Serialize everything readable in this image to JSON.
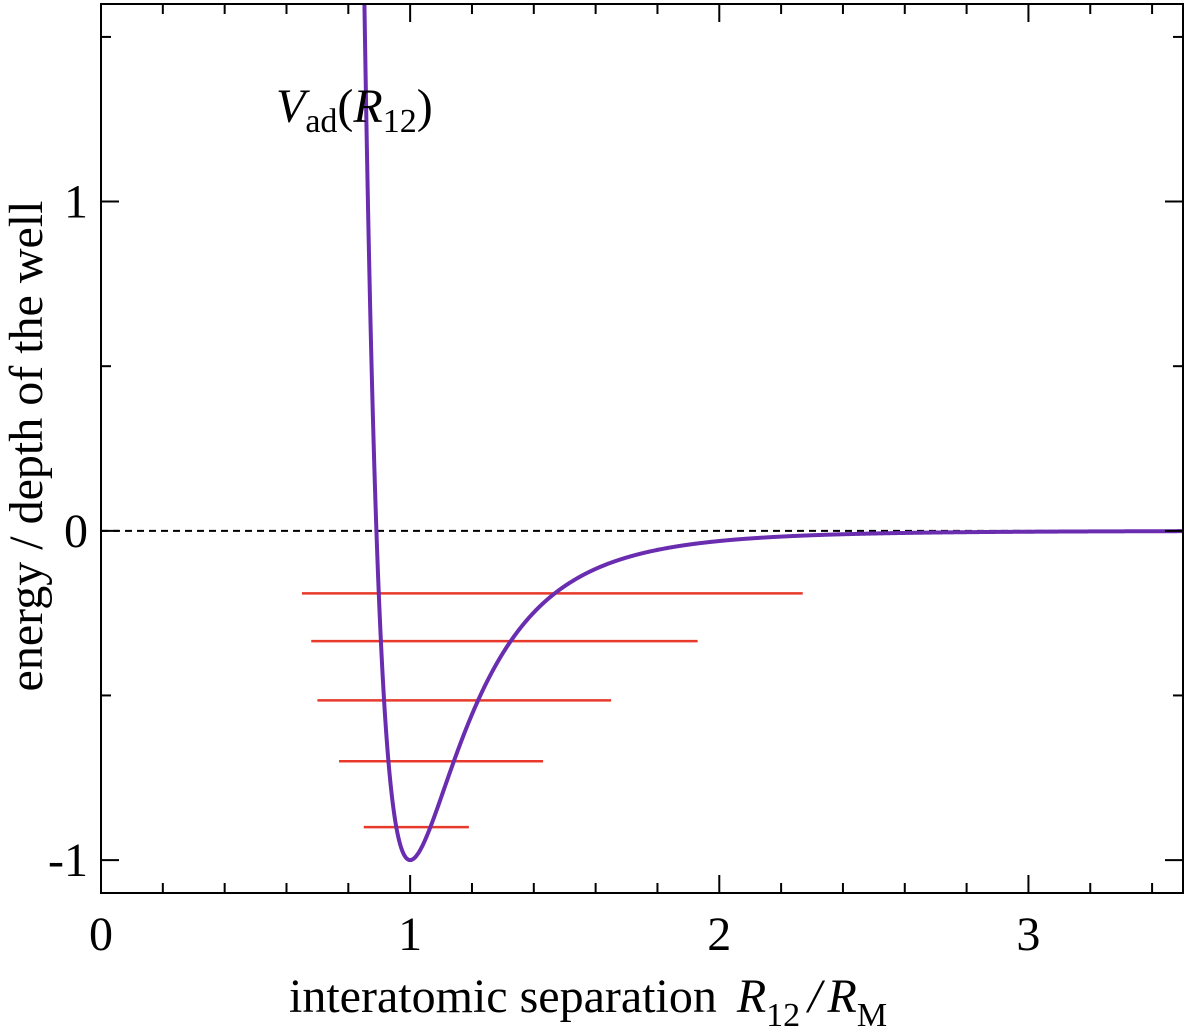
{
  "chart_data": {
    "type": "line",
    "title": "",
    "xlabel_parts": {
      "prefix": "interatomic separation",
      "r_var": "R",
      "r_sub": "12",
      "slash": "/",
      "rm_var": "R",
      "rm_sub": "M"
    },
    "ylabel": "energy / depth of the well",
    "curve_label": {
      "var": "V",
      "sub": "ad",
      "open": "(",
      "arg_var": "R",
      "arg_sub": "12",
      "close": ")"
    },
    "xlim": [
      0,
      3.5
    ],
    "ylim": [
      -1.1,
      1.6
    ],
    "x_ticks": [
      {
        "value": 0,
        "label": "0"
      },
      {
        "value": 1,
        "label": "1"
      },
      {
        "value": 2,
        "label": "2"
      },
      {
        "value": 3,
        "label": "3"
      }
    ],
    "x_minor_step": 0.2,
    "y_ticks": [
      {
        "value": -1,
        "label": "-1"
      },
      {
        "value": 0,
        "label": "0"
      },
      {
        "value": 1,
        "label": "1"
      }
    ],
    "y_minor_ticks": [
      -0.5,
      0.5,
      1.5
    ],
    "zero_reference": {
      "y": 0,
      "style": "dashed",
      "color": "#000000"
    },
    "curve": {
      "name": "",
      "color": "#6a2db0",
      "function": "Lennard-Jones 12-6 reduced form, y = x^-12 - 2 x^-6",
      "x_range": [
        0.45,
        3.5
      ]
    },
    "energy_levels": {
      "color": "#e8392b",
      "levels": [
        {
          "y": -0.9,
          "x_left": 0.85,
          "x_right": 1.19
        },
        {
          "y": -0.7,
          "x_left": 0.77,
          "x_right": 1.43
        },
        {
          "y": -0.515,
          "x_left": 0.7,
          "x_right": 1.65
        },
        {
          "y": -0.335,
          "x_left": 0.68,
          "x_right": 1.93
        },
        {
          "y": -0.19,
          "x_left": 0.65,
          "x_right": 2.27
        }
      ]
    },
    "grid": false,
    "legend": "none"
  }
}
